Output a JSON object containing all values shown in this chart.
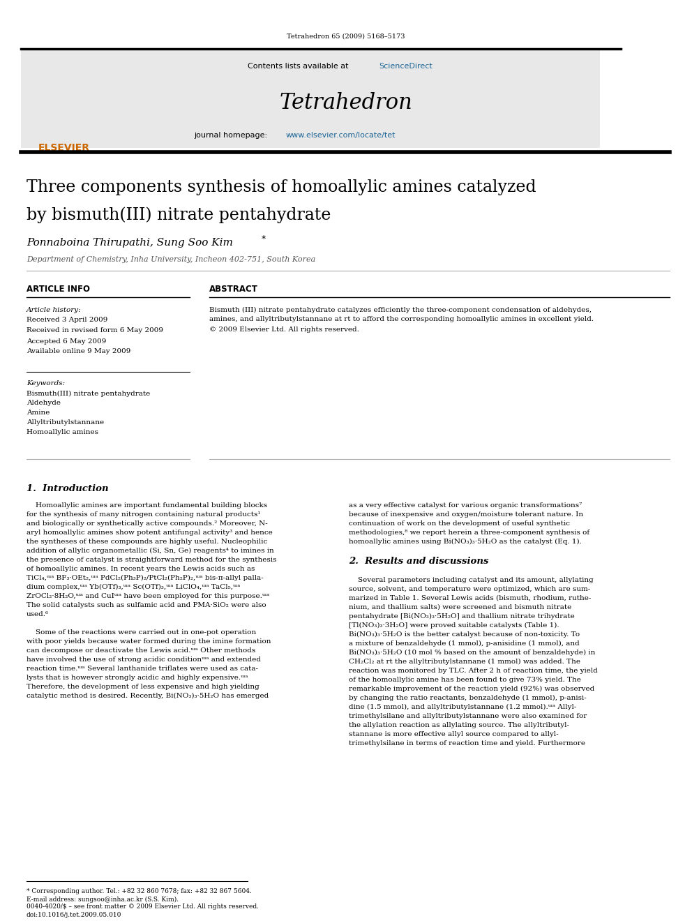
{
  "page_width": 9.92,
  "page_height": 13.23,
  "bg_color": "#ffffff",
  "top_journal_ref": "Tetrahedron 65 (2009) 5168–5173",
  "header_bg": "#e8e8e8",
  "header_sciencedirect_color": "#1a6496",
  "header_journal_name": "Tetrahedron",
  "header_homepage_url": "www.elsevier.com/locate/tet",
  "header_homepage_color": "#1a6496",
  "elsevier_color": "#cc6600",
  "section_article_info": "ARTICLE INFO",
  "section_abstract": "ABSTRACT",
  "article_history_label": "Article history:",
  "article_history": [
    "Received 3 April 2009",
    "Received in revised form 6 May 2009",
    "Accepted 6 May 2009",
    "Available online 9 May 2009"
  ],
  "keywords_label": "Keywords:",
  "keywords": [
    "Bismuth(III) nitrate pentahydrate",
    "Aldehyde",
    "Amine",
    "Allyltributylstannane",
    "Homoallylic amines"
  ],
  "affiliation": "Department of Chemistry, Inha University, Incheon 402-751, South Korea",
  "footnote_corresponding": "* Corresponding author. Tel.: +82 32 860 7678; fax: +82 32 867 5604.",
  "footnote_email": "E-mail address: sungsoo@inha.ac.kr (S.S. Kim).",
  "footnote_issn": "0040-4020/$ – see front matter © 2009 Elsevier Ltd. All rights reserved.",
  "footnote_doi": "doi:10.1016/j.tet.2009.05.010"
}
